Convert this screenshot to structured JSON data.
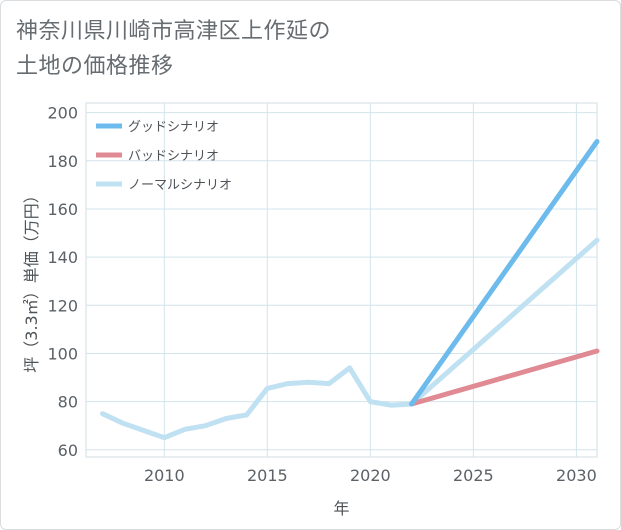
{
  "title_line1": "神奈川県川崎市高津区上作延の",
  "title_line2": "土地の価格推移",
  "chart_data": {
    "type": "line",
    "xlabel": "年",
    "ylabel": "坪（3.3㎡）単価（万円）",
    "xlim": [
      2006.2,
      2031
    ],
    "ylim": [
      57,
      204
    ],
    "xticks": [
      2010,
      2015,
      2020,
      2025,
      2030
    ],
    "yticks": [
      60,
      80,
      100,
      120,
      140,
      160,
      180,
      200
    ],
    "grid": true,
    "legend_position": "top-left",
    "series": [
      {
        "name": "グッドシナリオ",
        "color": "#6dbbec",
        "x": [
          2022,
          2031
        ],
        "y": [
          79,
          188
        ]
      },
      {
        "name": "バッドシナリオ",
        "color": "#e08b93",
        "x": [
          2022,
          2031
        ],
        "y": [
          79,
          101
        ]
      },
      {
        "name": "ノーマルシナリオ",
        "color": "#bfe1f2",
        "x": [
          2007,
          2008,
          2009,
          2010,
          2011,
          2012,
          2013,
          2014,
          2015,
          2016,
          2017,
          2018,
          2019,
          2020,
          2021,
          2022,
          2031
        ],
        "y": [
          75,
          71,
          68,
          65,
          68.5,
          70,
          73,
          74.5,
          85.5,
          87.5,
          88,
          87.5,
          94,
          80,
          78.5,
          79,
          147
        ]
      }
    ]
  }
}
